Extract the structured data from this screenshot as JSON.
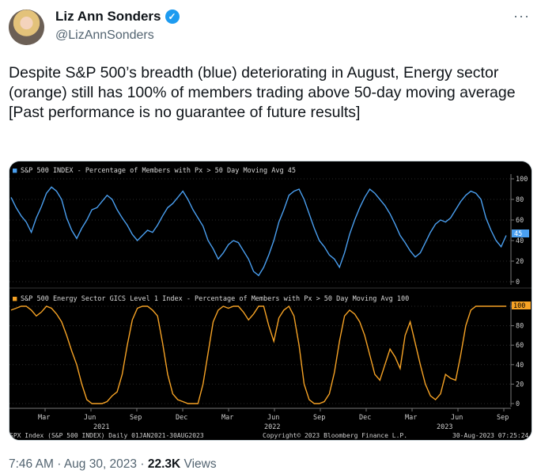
{
  "author": {
    "name": "Liz Ann Sonders",
    "handle": "@LizAnnSonders"
  },
  "icons": {
    "verified": "verified-badge-icon",
    "more": "more-options-icon",
    "avatar": "profile-avatar"
  },
  "more_label": "···",
  "tweet": {
    "lines": [
      "Despite S&P 500’s breadth (blue) deteriorating in August, Energy sector (orange) still has 100% of members trading above 50-day moving average",
      "[Past performance is no guarantee of future results]"
    ]
  },
  "footer": {
    "time": "7:46 AM",
    "date": "Aug 30, 2023",
    "views": "22.3K",
    "views_label": "Views"
  },
  "colors": {
    "blue": "#4a9ff0",
    "orange": "#f7a325",
    "chart_bg": "#000000"
  },
  "chart_data": [
    {
      "type": "line",
      "title": "S&P 500 INDEX - Percentage of Members with Px > 50 Day Moving Avg 45",
      "ylim": [
        0,
        100
      ],
      "yticks": [
        "100",
        "80",
        "60",
        "40",
        "20",
        "0"
      ],
      "last_value": "45",
      "color": "#4a9ff0",
      "series": [
        {
          "values": [
            82,
            72,
            64,
            58,
            48,
            62,
            73,
            86,
            92,
            88,
            80,
            62,
            50,
            42,
            52,
            60,
            70,
            72,
            78,
            84,
            80,
            70,
            62,
            55,
            46,
            40,
            45,
            50,
            48,
            55,
            64,
            72,
            76,
            82,
            88,
            80,
            70,
            62,
            54,
            40,
            32,
            22,
            28,
            36,
            40,
            38,
            30,
            22,
            10,
            6,
            14,
            26,
            40,
            58,
            70,
            84,
            88,
            90,
            80,
            66,
            52,
            40,
            34,
            26,
            22,
            14,
            28,
            46,
            60,
            72,
            82,
            90,
            86,
            80,
            74,
            66,
            56,
            45,
            38,
            30,
            24,
            28,
            38,
            48,
            56,
            60,
            58,
            62,
            70,
            78,
            84,
            88,
            86,
            80,
            62,
            50,
            40,
            34,
            45
          ]
        }
      ]
    },
    {
      "type": "line",
      "title": "S&P 500 Energy Sector GICS Level 1 Index - Percentage of Members with Px > 50 Day Moving Avg 100",
      "ylim": [
        0,
        100
      ],
      "yticks": [
        "100",
        "80",
        "60",
        "40",
        "20",
        "0"
      ],
      "last_value": "100",
      "color": "#f7a325",
      "x_ticks": [
        "Mar",
        "Jun",
        "Sep",
        "Dec",
        "Mar",
        "Jun",
        "Sep",
        "Dec",
        "Mar",
        "Jun",
        "Sep"
      ],
      "year_labels": [
        "2021",
        "2022",
        "2023"
      ],
      "series": [
        {
          "values": [
            96,
            98,
            100,
            100,
            96,
            90,
            94,
            100,
            98,
            92,
            84,
            70,
            54,
            40,
            20,
            4,
            0,
            0,
            0,
            2,
            8,
            12,
            30,
            60,
            86,
            98,
            100,
            100,
            96,
            90,
            62,
            30,
            10,
            4,
            2,
            0,
            0,
            0,
            20,
            52,
            84,
            96,
            100,
            98,
            100,
            100,
            94,
            86,
            92,
            100,
            100,
            80,
            64,
            88,
            96,
            100,
            90,
            60,
            20,
            4,
            0,
            0,
            2,
            10,
            32,
            64,
            90,
            96,
            92,
            84,
            70,
            50,
            30,
            24,
            40,
            56,
            48,
            36,
            70,
            84,
            62,
            40,
            20,
            8,
            4,
            10,
            30,
            26,
            24,
            50,
            80,
            96,
            100,
            100,
            100,
            100,
            100,
            100,
            100
          ]
        }
      ],
      "footer": {
        "left": "SPX Index (S&P 500 INDEX) Daily 01JAN2021-30AUG2023",
        "middle": "Copyright© 2023 Bloomberg Finance L.P.",
        "right": "30-Aug-2023 07:25:24"
      }
    }
  ]
}
